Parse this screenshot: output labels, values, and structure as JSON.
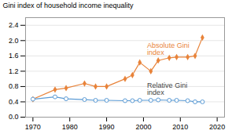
{
  "chart_data": {
    "type": "line",
    "ylabel": "Gini index of household income inequality",
    "x": [
      1970,
      1976,
      1979,
      1984,
      1987,
      1990,
      1995,
      1997,
      1999,
      2002,
      2004,
      2007,
      2009,
      2012,
      2014,
      2016
    ],
    "series": [
      {
        "color": "#E8833A",
        "marker": "diamond",
        "values": [
          0.47,
          0.72,
          0.76,
          0.88,
          0.8,
          0.8,
          1.0,
          1.1,
          1.43,
          1.2,
          1.48,
          1.55,
          1.57,
          1.57,
          1.6,
          2.08
        ]
      },
      {
        "color": "#5B9BD5",
        "marker": "circle_open",
        "values": [
          0.47,
          0.53,
          0.48,
          0.46,
          0.44,
          0.44,
          0.43,
          0.43,
          0.44,
          0.44,
          0.45,
          0.44,
          0.44,
          0.43,
          0.4,
          0.4
        ]
      }
    ],
    "xlim": [
      1968,
      2022
    ],
    "xticks": [
      1970,
      1980,
      1990,
      2000,
      2010,
      2020
    ],
    "ylim": [
      0.0,
      2.6
    ],
    "yticks": [
      {
        "value": 0,
        "label": "0.0"
      },
      0.4,
      0.8,
      1.2,
      1.6,
      {
        "value": 2,
        "label": "2.0"
      },
      2.4
    ],
    "grid": true,
    "annotations": [
      {
        "text": "Absolute Gini\nindex",
        "x": 2001,
        "y": 1.62,
        "color": "#E8833A"
      },
      {
        "text": "Relative Gini\nindex",
        "x": 2001,
        "y": 0.58,
        "color": "#444444"
      }
    ]
  }
}
